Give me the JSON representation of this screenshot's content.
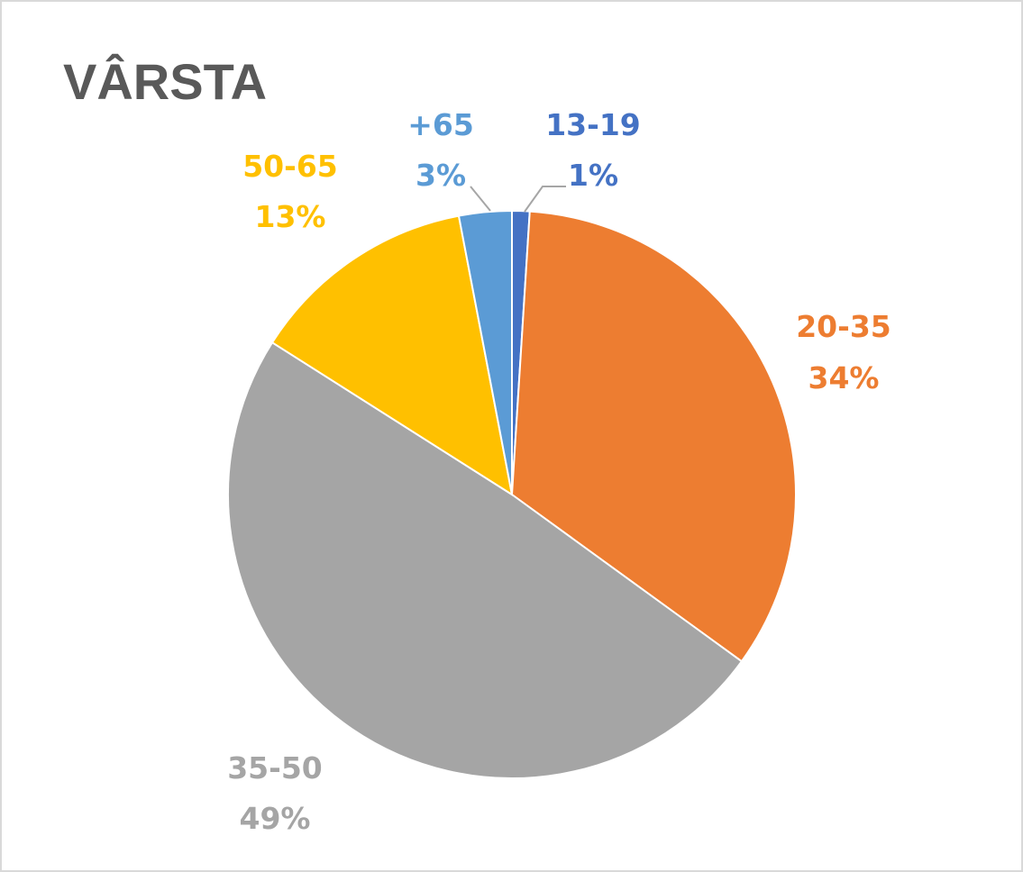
{
  "chart_data": {
    "type": "pie",
    "title": "VÂRSTA",
    "slices": [
      {
        "label": "13-19",
        "value": 1,
        "display": "1%",
        "color": "#4472c4"
      },
      {
        "label": "20-35",
        "value": 34,
        "display": "34%",
        "color": "#ed7d31"
      },
      {
        "label": "35-50",
        "value": 49,
        "display": "49%",
        "color": "#a5a5a5"
      },
      {
        "label": "50-65",
        "value": 13,
        "display": "13%",
        "color": "#ffc000"
      },
      {
        "label": "+65",
        "value": 3,
        "display": "3%",
        "color": "#5b9bd5"
      }
    ],
    "legend": "none"
  }
}
